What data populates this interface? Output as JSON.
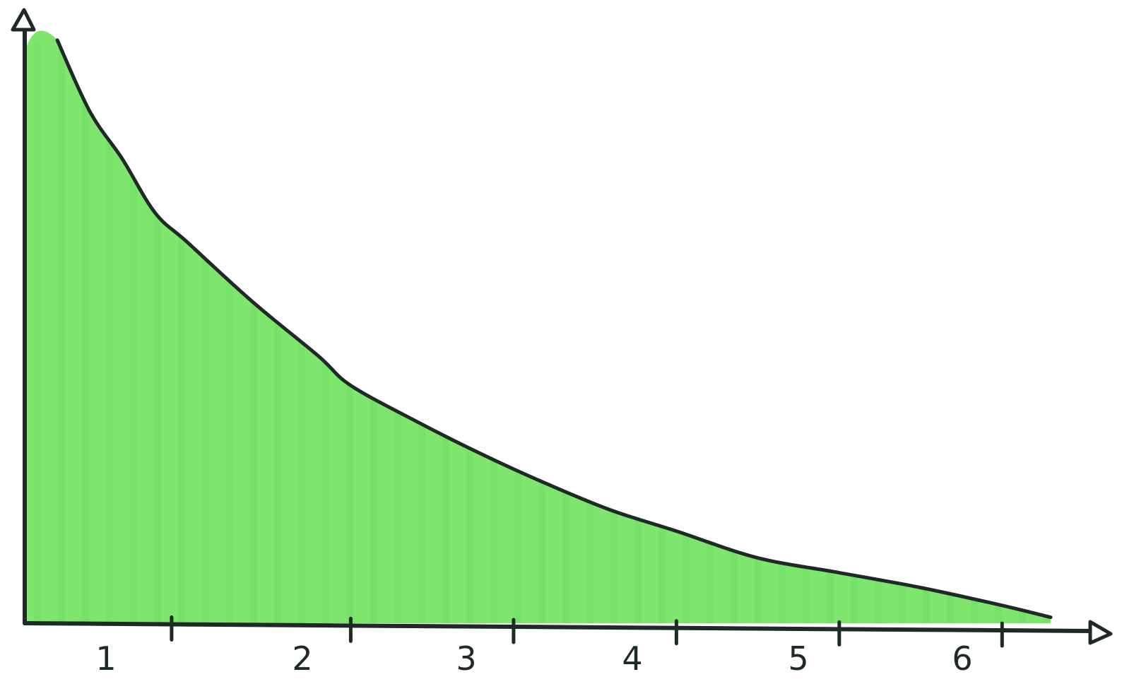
{
  "chart_data": {
    "type": "area",
    "title": "",
    "xlabel": "",
    "ylabel": "",
    "grid": false,
    "legend": "none",
    "xlim": [
      0,
      6.4
    ],
    "ylim": [
      0,
      1.0
    ],
    "x_ticks": [
      0.85,
      1.95,
      2.95,
      3.95,
      4.95,
      5.95
    ],
    "x_tick_labels": [
      "1",
      "2",
      "3",
      "4",
      "5",
      "6"
    ],
    "series": [
      {
        "x": [
          0.2,
          0.4,
          0.6,
          0.8,
          1.0,
          1.4,
          1.8,
          2.0,
          2.4,
          2.8,
          3.2,
          3.6,
          4.0,
          4.5,
          5.0,
          5.5,
          6.0,
          6.3
        ],
        "y": [
          0.98,
          0.86,
          0.78,
          0.69,
          0.64,
          0.54,
          0.45,
          0.4,
          0.34,
          0.285,
          0.235,
          0.19,
          0.155,
          0.11,
          0.085,
          0.06,
          0.03,
          0.01
        ]
      }
    ],
    "colors": {
      "fill": "#7ee66c",
      "fill_dark": "#5fd45a",
      "line": "#1f2a26",
      "axis": "#1f2a26"
    }
  }
}
